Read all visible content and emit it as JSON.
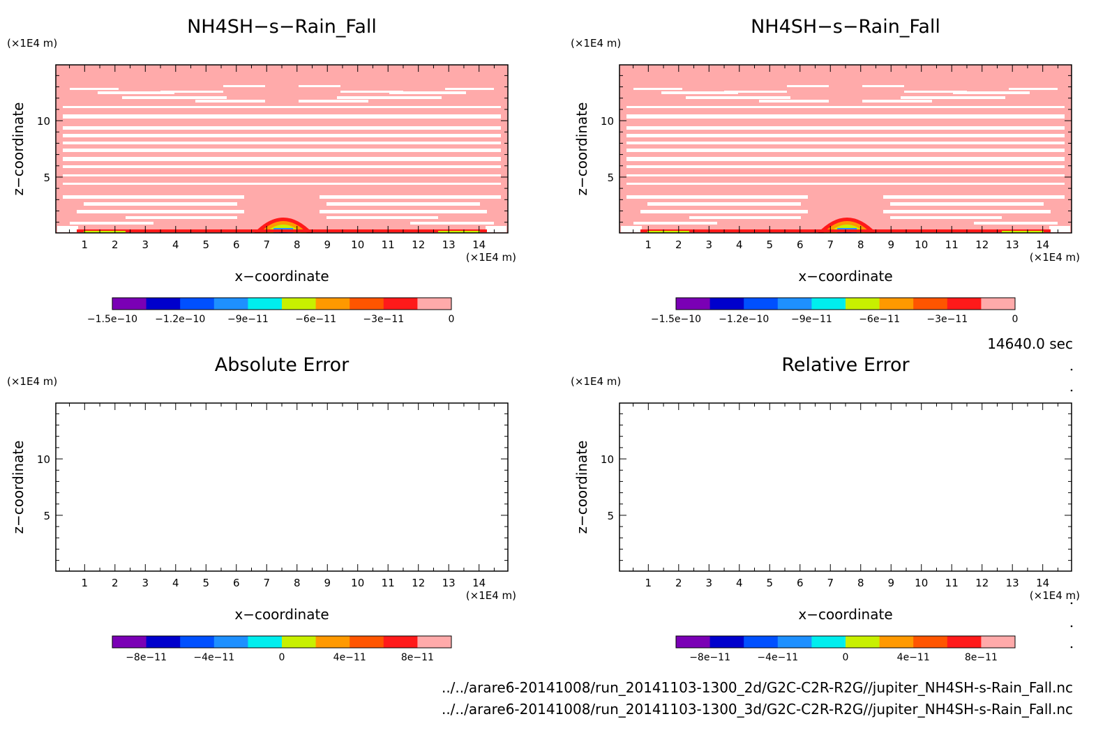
{
  "time_label": "14640.0 sec",
  "files": [
    "../../arare6-20141008/run_20141103-1300_2d/G2C-C2R-R2G//jupiter_NH4SH-s-Rain_Fall.nc",
    "../../arare6-20141008/run_20141103-1300_3d/G2C-C2R-R2G//jupiter_NH4SH-s-Rain_Fall.nc"
  ],
  "chart_data": [
    {
      "type": "heatmap",
      "title": "NH4SH−s−Rain_Fall",
      "xlabel": "x−coordinate",
      "ylabel": "z−coordinate",
      "x_unit": "(×1E4 m)",
      "y_unit": "(×1E4 m)",
      "xlim": [
        0.05,
        14.95
      ],
      "ylim": [
        0.05,
        14.95
      ],
      "x_ticks": [
        1,
        2,
        3,
        4,
        5,
        6,
        7,
        8,
        9,
        10,
        11,
        12,
        13,
        14
      ],
      "y_ticks": [
        5,
        10
      ],
      "colorbar": {
        "levels": 11,
        "range": [
          -1.5e-10,
          0
        ],
        "labels": [
          "−1.5e−10",
          "−1.2e−10",
          "−9e−11",
          "−6e−11",
          "−3e−11",
          "0"
        ]
      },
      "field": "filled"
    },
    {
      "type": "heatmap",
      "title": "NH4SH−s−Rain_Fall",
      "xlabel": "x−coordinate",
      "ylabel": "z−coordinate",
      "x_unit": "(×1E4 m)",
      "y_unit": "(×1E4 m)",
      "xlim": [
        0.05,
        14.95
      ],
      "ylim": [
        0.05,
        14.95
      ],
      "x_ticks": [
        1,
        2,
        3,
        4,
        5,
        6,
        7,
        8,
        9,
        10,
        11,
        12,
        13,
        14
      ],
      "y_ticks": [
        5,
        10
      ],
      "colorbar": {
        "levels": 11,
        "range": [
          -1.5e-10,
          0
        ],
        "labels": [
          "−1.5e−10",
          "−1.2e−10",
          "−9e−11",
          "−6e−11",
          "−3e−11",
          "0"
        ]
      },
      "field": "filled"
    },
    {
      "type": "heatmap",
      "title": "Absolute Error",
      "xlabel": "x−coordinate",
      "ylabel": "z−coordinate",
      "x_unit": "(×1E4 m)",
      "y_unit": "(×1E4 m)",
      "xlim": [
        0.05,
        14.95
      ],
      "ylim": [
        0.05,
        14.95
      ],
      "x_ticks": [
        1,
        2,
        3,
        4,
        5,
        6,
        7,
        8,
        9,
        10,
        11,
        12,
        13,
        14
      ],
      "y_ticks": [
        5,
        10
      ],
      "colorbar": {
        "levels": 9,
        "range": [
          -1e-10,
          1e-10
        ],
        "labels": [
          "−8e−11",
          "−4e−11",
          "0",
          "4e−11",
          "8e−11"
        ]
      },
      "field": "empty"
    },
    {
      "type": "heatmap",
      "title": "Relative Error",
      "xlabel": "x−coordinate",
      "ylabel": "z−coordinate",
      "x_unit": "(×1E4 m)",
      "y_unit": "(×1E4 m)",
      "xlim": [
        0.05,
        14.95
      ],
      "ylim": [
        0.05,
        14.95
      ],
      "x_ticks": [
        1,
        2,
        3,
        4,
        5,
        6,
        7,
        8,
        9,
        10,
        11,
        12,
        13,
        14
      ],
      "y_ticks": [
        5,
        10
      ],
      "colorbar": {
        "levels": 9,
        "range": [
          -1e-10,
          1e-10
        ],
        "labels": [
          "−8e−11",
          "−4e−11",
          "0",
          "4e−11",
          "8e−11"
        ]
      },
      "field": "empty"
    }
  ],
  "colors": {
    "pink": "#ffaaaa",
    "red": "#ff1a1a",
    "orange_red": "#ff5500",
    "orange": "#ff9900",
    "yellow_green": "#c8f000",
    "cyan": "#00eeee",
    "light_blue": "#1e90ff",
    "blue": "#0050ff",
    "dark_blue": "#0000cc",
    "purple": "#7a00b5"
  }
}
